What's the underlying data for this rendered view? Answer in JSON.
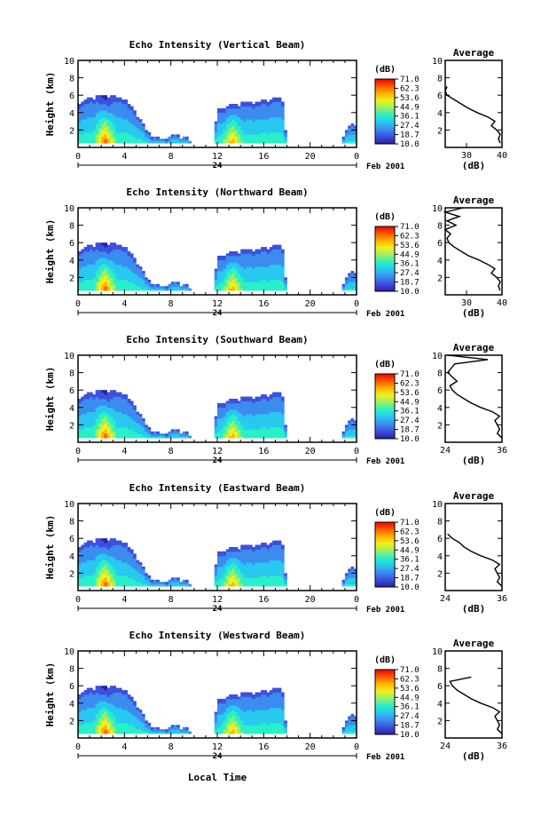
{
  "page": {
    "bottom_xlabel": "Local Time",
    "colorbar_unit": "(dB)",
    "colorbar_ticks": [
      "71.0",
      "62.3",
      "53.6",
      "44.9",
      "36.1",
      "27.4",
      "18.7",
      "10.0"
    ],
    "colorbar_colors": [
      "#f00000",
      "#ff5a00",
      "#ffb400",
      "#f0f020",
      "#96f064",
      "#28f0c8",
      "#28c8f0",
      "#3c8cf0",
      "#3c50dc",
      "#2820a0"
    ],
    "average_title": "Average",
    "average_xlabel": "(dB)",
    "day_label": "24",
    "date_label": "Feb 2001"
  },
  "chart_data": [
    {
      "type": "heatmap",
      "title": "Echo Intensity (Vertical Beam)",
      "ylabel": "Height (km)",
      "xlim": [
        0,
        24
      ],
      "ylim": [
        0,
        10
      ],
      "xticks": [
        "0",
        "4",
        "8",
        "12",
        "16",
        "20",
        "0"
      ],
      "yticks": [
        "2",
        "4",
        "6",
        "8",
        "10"
      ],
      "average": {
        "xlim": [
          24,
          40
        ],
        "xticks": [
          "30",
          "40"
        ],
        "height": [
          0.5,
          1.0,
          1.5,
          2.0,
          2.5,
          3.0,
          3.5,
          4.0,
          4.5,
          5.0,
          5.5,
          6.0,
          6.5,
          7.0
        ],
        "value": [
          39.5,
          39.0,
          39.5,
          38.5,
          37.0,
          38.0,
          36.0,
          33.0,
          30.5,
          28.5,
          26.5,
          24.5,
          24.0,
          24.5
        ]
      }
    },
    {
      "type": "heatmap",
      "title": "Echo Intensity (Northward Beam)",
      "ylabel": "Height (km)",
      "xlim": [
        0,
        24
      ],
      "ylim": [
        0,
        10
      ],
      "xticks": [
        "0",
        "4",
        "8",
        "12",
        "16",
        "20",
        "0"
      ],
      "yticks": [
        "2",
        "4",
        "6",
        "8",
        "10"
      ],
      "average": {
        "xlim": [
          24,
          40
        ],
        "xticks": [
          "30",
          "40"
        ],
        "height": [
          0.5,
          1.0,
          1.5,
          2.0,
          2.5,
          3.0,
          3.5,
          4.0,
          4.5,
          5.0,
          5.5,
          6.0,
          6.5,
          7.0,
          7.5,
          8.0,
          8.5,
          9.0,
          9.5,
          10.0
        ],
        "value": [
          39.5,
          39.0,
          39.5,
          38.5,
          37.0,
          38.0,
          36.0,
          33.5,
          30.5,
          28.5,
          26.5,
          25.0,
          24.5,
          25.5,
          24.0,
          27.0,
          24.5,
          28.0,
          24.0,
          29.0
        ]
      }
    },
    {
      "type": "heatmap",
      "title": "Echo Intensity (Southward Beam)",
      "ylabel": "Height (km)",
      "xlim": [
        0,
        24
      ],
      "ylim": [
        0,
        10
      ],
      "xticks": [
        "0",
        "4",
        "8",
        "12",
        "16",
        "20",
        "0"
      ],
      "yticks": [
        "2",
        "4",
        "6",
        "8",
        "10"
      ],
      "average": {
        "xlim": [
          24,
          36
        ],
        "xticks": [
          "24",
          "36"
        ],
        "height": [
          0.5,
          1.0,
          1.5,
          2.0,
          2.5,
          3.0,
          3.5,
          4.0,
          4.5,
          5.0,
          5.5,
          6.0,
          6.5,
          7.0,
          8.0,
          9.0,
          9.5,
          10.0
        ],
        "value": [
          36.0,
          35.0,
          35.5,
          35.0,
          34.5,
          35.5,
          34.0,
          31.5,
          29.5,
          28.0,
          26.5,
          25.5,
          25.0,
          26.5,
          24.5,
          26.0,
          33.0,
          24.5
        ]
      }
    },
    {
      "type": "heatmap",
      "title": "Echo Intensity (Eastward Beam)",
      "ylabel": "Height (km)",
      "xlim": [
        0,
        24
      ],
      "ylim": [
        0,
        10
      ],
      "xticks": [
        "0",
        "4",
        "8",
        "12",
        "16",
        "20",
        "0"
      ],
      "yticks": [
        "2",
        "4",
        "6",
        "8",
        "10"
      ],
      "average": {
        "xlim": [
          24,
          36
        ],
        "xticks": [
          "24",
          "36"
        ],
        "height": [
          0.5,
          1.0,
          1.5,
          2.0,
          2.5,
          3.0,
          3.5,
          4.0,
          4.5,
          5.0,
          5.5,
          6.0,
          6.5
        ],
        "value": [
          36.0,
          35.0,
          35.5,
          35.0,
          34.5,
          35.5,
          34.0,
          31.5,
          29.5,
          28.0,
          27.0,
          25.5,
          24.5
        ]
      }
    },
    {
      "type": "heatmap",
      "title": "Echo Intensity (Westward Beam)",
      "ylabel": "Height (km)",
      "xlim": [
        0,
        24
      ],
      "ylim": [
        0,
        10
      ],
      "xticks": [
        "0",
        "4",
        "8",
        "12",
        "16",
        "20",
        "0"
      ],
      "yticks": [
        "2",
        "4",
        "6",
        "8",
        "10"
      ],
      "average": {
        "xlim": [
          24,
          36
        ],
        "xticks": [
          "24",
          "36"
        ],
        "height": [
          0.5,
          1.0,
          1.5,
          2.0,
          2.5,
          3.0,
          3.5,
          4.0,
          4.5,
          5.0,
          5.5,
          6.0,
          6.5,
          7.0
        ],
        "value": [
          36.0,
          35.0,
          35.5,
          35.0,
          34.5,
          35.5,
          34.0,
          31.5,
          29.5,
          28.0,
          26.5,
          25.5,
          25.0,
          29.5
        ]
      }
    }
  ]
}
